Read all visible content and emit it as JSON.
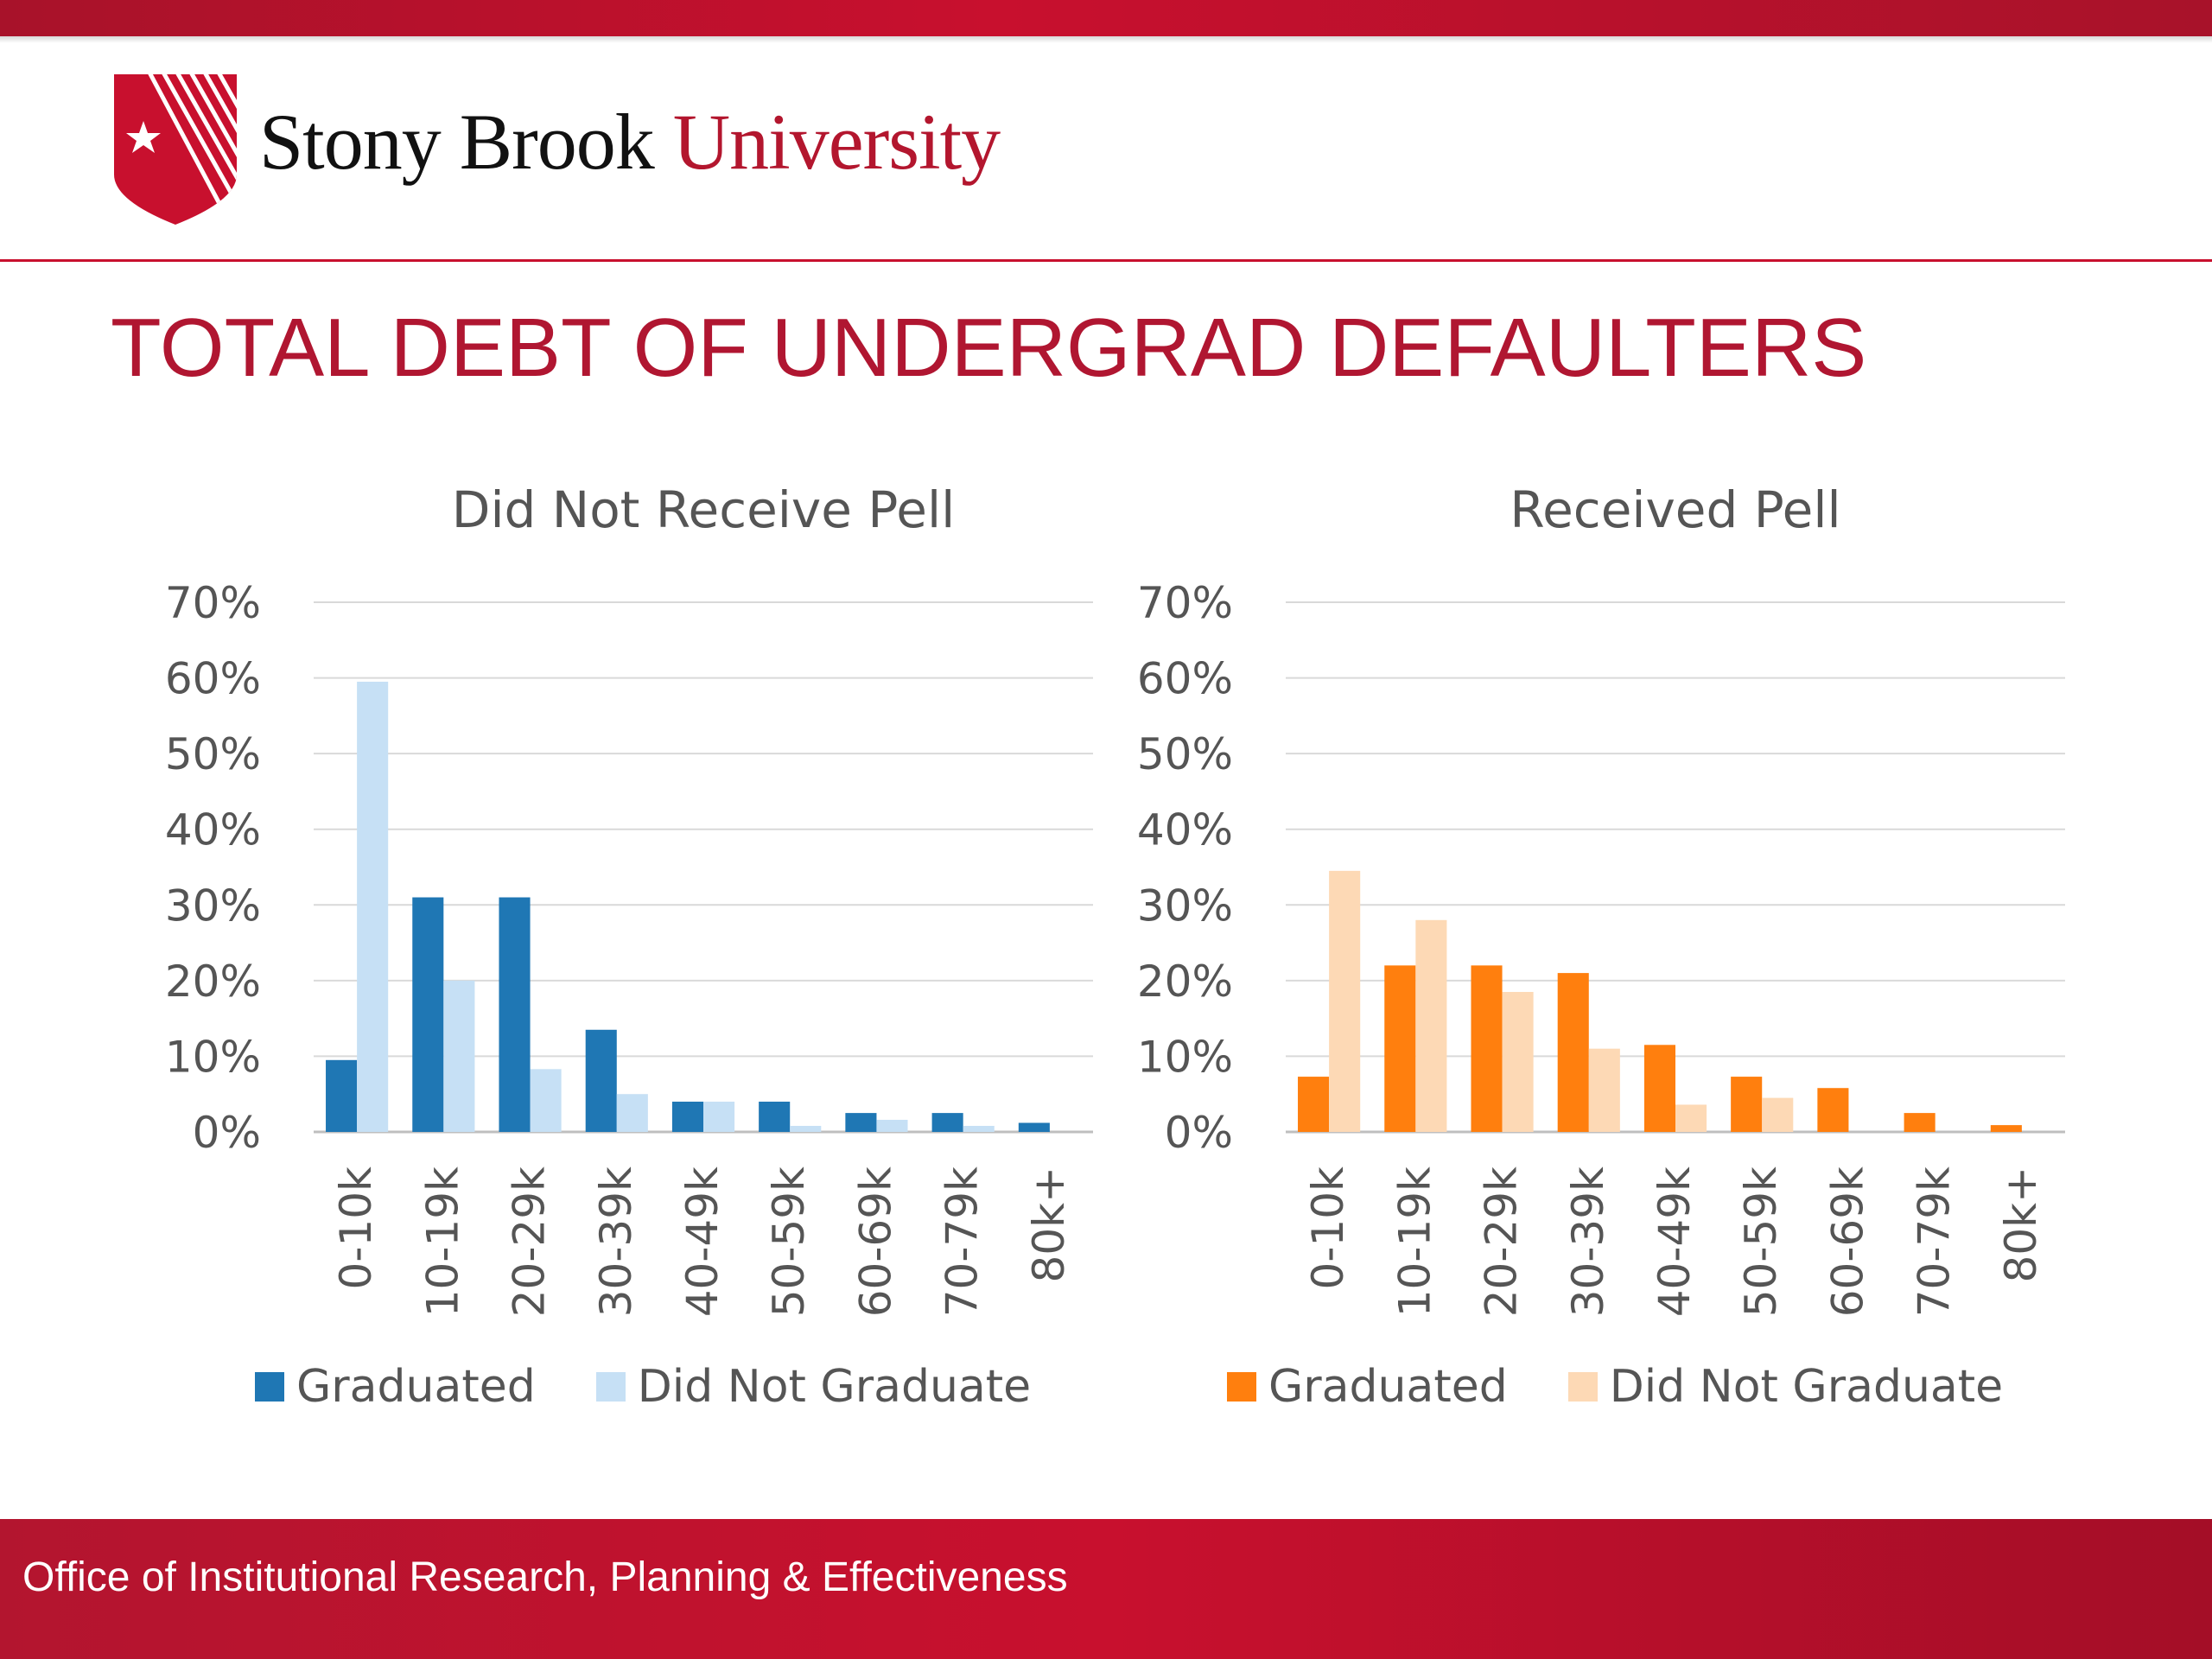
{
  "header": {
    "brand_part1": "Stony Brook",
    "brand_part2": "University",
    "logo_icon": "shield-star-logo-icon"
  },
  "slide": {
    "title": "TOTAL DEBT OF UNDERGRAD DEFAULTERS"
  },
  "footer": {
    "text": "Office of Institutional Research, Planning & Effectiveness"
  },
  "colors": {
    "brand_red": "#c8102e",
    "blue_graduated": "#1f77b4",
    "blue_not_graduated": "#c6e0f5",
    "orange_graduated": "#ff7f0e",
    "orange_not_graduated": "#fdd9b5"
  },
  "chart_data": [
    {
      "type": "bar",
      "title": "Did Not Receive Pell",
      "categories": [
        "0-10k",
        "10-19k",
        "20-29k",
        "30-39k",
        "40-49k",
        "50-59k",
        "60-69k",
        "70-79k",
        "80k+"
      ],
      "series": [
        {
          "name": "Graduated",
          "values": [
            9.5,
            31,
            31,
            13.5,
            4,
            4,
            2.5,
            2.5,
            1.2
          ],
          "color": "#1f77b4"
        },
        {
          "name": "Did Not Graduate",
          "values": [
            59.5,
            20,
            8.3,
            5,
            4,
            0.8,
            1.6,
            0.8,
            0
          ],
          "color": "#c6e0f5"
        }
      ],
      "yticks": [
        "0%",
        "10%",
        "20%",
        "30%",
        "40%",
        "50%",
        "60%",
        "70%"
      ],
      "ylim": [
        0,
        70
      ],
      "grid": true,
      "legend_position": "bottom"
    },
    {
      "type": "bar",
      "title": "Received Pell",
      "categories": [
        "0-10k",
        "10-19k",
        "20-29k",
        "30-39k",
        "40-49k",
        "50-59k",
        "60-69k",
        "70-79k",
        "80k+"
      ],
      "series": [
        {
          "name": "Graduated",
          "values": [
            7.3,
            22,
            22,
            21,
            11.5,
            7.3,
            5.8,
            2.5,
            0.9
          ],
          "color": "#ff7f0e"
        },
        {
          "name": "Did Not Graduate",
          "values": [
            34.5,
            28,
            18.5,
            11,
            3.6,
            4.5,
            0,
            0,
            0
          ],
          "color": "#fdd9b5"
        }
      ],
      "yticks": [
        "0%",
        "10%",
        "20%",
        "30%",
        "40%",
        "50%",
        "60%",
        "70%"
      ],
      "ylim": [
        0,
        70
      ],
      "grid": true,
      "legend_position": "bottom"
    }
  ]
}
